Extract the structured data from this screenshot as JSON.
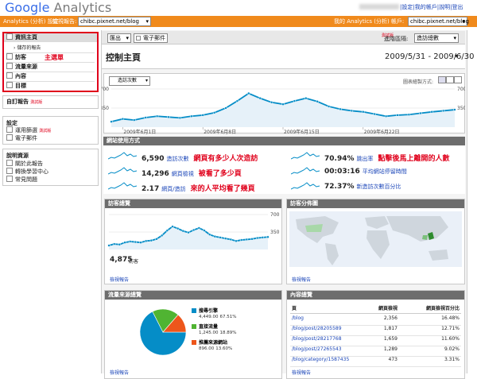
{
  "header": {
    "logo_google": "Google",
    "logo_analytics": "Analytics",
    "links": [
      "設定",
      "我的帳戶",
      "說明",
      "登出"
    ]
  },
  "nav_bar": {
    "settings": "Analytics (分析) 設定",
    "view_reports": "檢視報告:",
    "profile": "chibc.pixnet.net/blog",
    "my_accounts": "我的 Analytics (分析) 帳戶:",
    "account": "chibc.pixnet.net/blog"
  },
  "sidebar": {
    "menu": {
      "items": [
        "資訊主頁",
        "儲存的報告",
        "訪客",
        "流量來源",
        "內容",
        "目標"
      ],
      "annotation": "主選單"
    },
    "custom_reports": "自訂報告",
    "beta": "測試版",
    "settings": {
      "title": "設定",
      "items": [
        "運用篩選",
        "電子郵件"
      ]
    },
    "help": {
      "title": "說明資源",
      "items": [
        "關於此報告",
        "轉換學習中心",
        "常見問題"
      ]
    }
  },
  "toolbar": {
    "export": "匯出",
    "email": "電子郵件",
    "advanced_segments": "進階區隔:",
    "segment": "造訪總數",
    "beta": "測試版"
  },
  "page": {
    "title": "控制主頁",
    "date_range": "2009/5/31 - 2009/6/30"
  },
  "main_chart": {
    "type": "line",
    "metric": "造訪次數",
    "graph_by": "圖表繪製方式:",
    "color": "#058dc7",
    "categories": [
      null,
      "2009年6月1日",
      null,
      null,
      null,
      null,
      null,
      null,
      "2009年6月8日",
      null,
      null,
      null,
      null,
      null,
      null,
      "2009年6月15日",
      null,
      null,
      null,
      null,
      null,
      null,
      "2009年6月22日",
      null,
      null,
      null,
      null,
      null,
      null,
      null,
      null
    ],
    "values": [
      100,
      150,
      130,
      175,
      200,
      185,
      170,
      200,
      220,
      265,
      350,
      480,
      620,
      530,
      455,
      420,
      480,
      530,
      470,
      380,
      330,
      300,
      280,
      240,
      200,
      220,
      230,
      255,
      280,
      300,
      320
    ],
    "ylim": [
      0,
      700
    ],
    "yticks": [
      700,
      350
    ]
  },
  "site_usage": {
    "title": "網站使用方式",
    "stats": [
      {
        "value": "6,590",
        "label": "造訪次數",
        "annotation": "網頁有多少人次造訪"
      },
      {
        "value": "14,296",
        "label": "網頁檢視",
        "annotation": "被看了多少頁"
      },
      {
        "value": "2.17",
        "label": "網頁/造訪",
        "annotation": "來的人平均看了幾頁"
      },
      {
        "value": "70.94%",
        "label": "跳出率",
        "annotation": "點擊後馬上離開的人數"
      },
      {
        "value": "00:03:16",
        "label": "平均網站停留時間"
      },
      {
        "value": "72.37%",
        "label": "新造訪次數百分比"
      }
    ]
  },
  "visitors_overview": {
    "title": "訪客總覽",
    "chart": {
      "type": "line",
      "color": "#058dc7",
      "values": [
        80,
        110,
        100,
        140,
        160,
        150,
        140,
        170,
        180,
        210,
        280,
        380,
        460,
        420,
        370,
        340,
        390,
        430,
        380,
        300,
        260,
        240,
        220,
        200,
        170,
        190,
        200,
        210,
        230,
        240,
        250
      ],
      "ylim": [
        0,
        700
      ],
      "yticks": [
        700,
        350
      ]
    },
    "total": "4,875",
    "total_label": "訪客",
    "link": "檢視報告"
  },
  "map_overlay": {
    "title": "訪客分佈圖",
    "link": "檢視報告"
  },
  "traffic_sources": {
    "title": "流量來源總覽",
    "link": "檢視報告",
    "items": [
      {
        "name": "搜尋引擎",
        "value": 4449,
        "value_label": "4,449.00",
        "percent": 67.51,
        "percent_label": "67.51%",
        "color": "#058dc7"
      },
      {
        "name": "直接流量",
        "value": 1245,
        "value_label": "1,245.00",
        "percent": 18.89,
        "percent_label": "18.89%",
        "color": "#50b432"
      },
      {
        "name": "推薦來源網站",
        "value": 896,
        "value_label": "896.00",
        "percent": 13.6,
        "percent_label": "13.60%",
        "color": "#ed561b"
      }
    ]
  },
  "content_overview": {
    "title": "內容總覽",
    "link": "檢視報告",
    "columns": [
      "頁",
      "網頁檢視",
      "網頁檢視百分比"
    ],
    "rows": [
      [
        "/blog",
        "2,356",
        "16.48%"
      ],
      [
        "/blog/post/28205589",
        "1,817",
        "12.71%"
      ],
      [
        "/blog/post/28217768",
        "1,659",
        "11.60%"
      ],
      [
        "/blog/post/27265543",
        "1,289",
        "9.02%"
      ],
      [
        "/blog/category/1587435",
        "473",
        "3.31%"
      ]
    ]
  }
}
